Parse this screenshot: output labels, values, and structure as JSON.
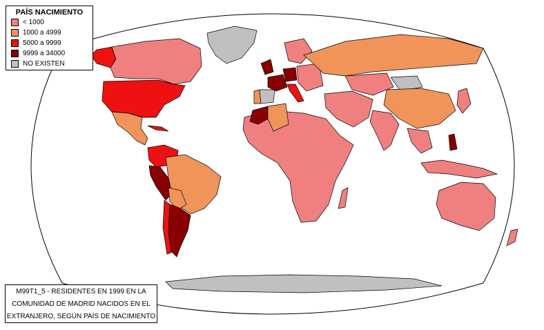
{
  "legend": {
    "title": "PAÍS NACIMIENTO",
    "items": [
      {
        "label": "< 1000",
        "color": "#f08080"
      },
      {
        "label": "1000 a 4999",
        "color": "#f0945a"
      },
      {
        "label": "5000 a 9999",
        "color": "#ee1111"
      },
      {
        "label": "9999 a 34000",
        "color": "#880000"
      },
      {
        "label": "NO EXISTEN",
        "color": "#c0c0c0"
      }
    ]
  },
  "caption": {
    "lines": [
      "M99T1_5 - RESIDENTES EN 1999 EN LA",
      "COMUNIDAD DE MADRID NACIDOS EN EL",
      "EXTRANJERO, SEGÚN PAÍS DE NACIMIENTO"
    ]
  },
  "colors": {
    "low": "#f08080",
    "mid": "#f0945a",
    "high": "#ee1111",
    "top": "#880000",
    "none": "#c0c0c0",
    "border": "#000000"
  }
}
